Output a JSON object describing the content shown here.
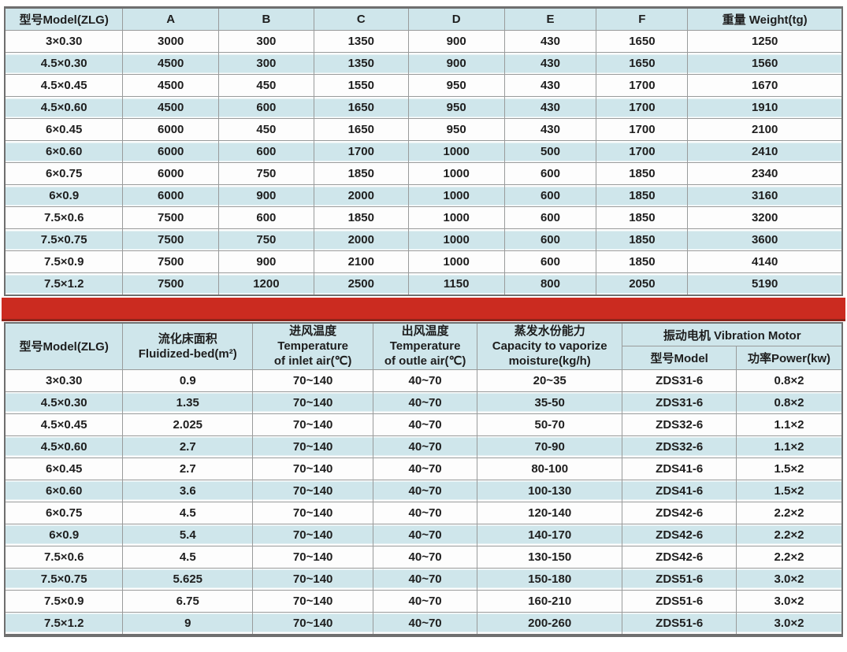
{
  "colors": {
    "row_alt_blue": "#cfe6eb",
    "divider_red": "#cb2b20",
    "border_gray": "#6f6f6f",
    "grid_gray": "#999b9b",
    "text": "#1e1e1e"
  },
  "table1": {
    "headers": [
      "型号Model(ZLG)",
      "A",
      "B",
      "C",
      "D",
      "E",
      "F",
      "重量 Weight(tg)"
    ],
    "rows": [
      [
        "3×0.30",
        "3000",
        "300",
        "1350",
        "900",
        "430",
        "1650",
        "1250"
      ],
      [
        "4.5×0.30",
        "4500",
        "300",
        "1350",
        "900",
        "430",
        "1650",
        "1560"
      ],
      [
        "4.5×0.45",
        "4500",
        "450",
        "1550",
        "950",
        "430",
        "1700",
        "1670"
      ],
      [
        "4.5×0.60",
        "4500",
        "600",
        "1650",
        "950",
        "430",
        "1700",
        "1910"
      ],
      [
        "6×0.45",
        "6000",
        "450",
        "1650",
        "950",
        "430",
        "1700",
        "2100"
      ],
      [
        "6×0.60",
        "6000",
        "600",
        "1700",
        "1000",
        "500",
        "1700",
        "2410"
      ],
      [
        "6×0.75",
        "6000",
        "750",
        "1850",
        "1000",
        "600",
        "1850",
        "2340"
      ],
      [
        "6×0.9",
        "6000",
        "900",
        "2000",
        "1000",
        "600",
        "1850",
        "3160"
      ],
      [
        "7.5×0.6",
        "7500",
        "600",
        "1850",
        "1000",
        "600",
        "1850",
        "3200"
      ],
      [
        "7.5×0.75",
        "7500",
        "750",
        "2000",
        "1000",
        "600",
        "1850",
        "3600"
      ],
      [
        "7.5×0.9",
        "7500",
        "900",
        "2100",
        "1000",
        "600",
        "1850",
        "4140"
      ],
      [
        "7.5×1.2",
        "7500",
        "1200",
        "2500",
        "1150",
        "800",
        "2050",
        "5190"
      ]
    ]
  },
  "table2": {
    "headers": {
      "model": "型号Model(ZLG)",
      "fluidized": "流化床面积\nFluidized-bed(m²)",
      "inlet": "进风温度\nTemperature\nof inlet air(℃)",
      "outlet": "出风温度\nTemperature\nof outle air(℃)",
      "capacity": "蒸发水份能力\nCapacity to vaporize\nmoisture(kg/h)",
      "motor_group": "振动电机 Vibration Motor",
      "motor_model": "型号Model",
      "motor_power": "功率Power(kw)"
    },
    "rows": [
      [
        "3×0.30",
        "0.9",
        "70~140",
        "40~70",
        "20~35",
        "ZDS31-6",
        "0.8×2"
      ],
      [
        "4.5×0.30",
        "1.35",
        "70~140",
        "40~70",
        "35-50",
        "ZDS31-6",
        "0.8×2"
      ],
      [
        "4.5×0.45",
        "2.025",
        "70~140",
        "40~70",
        "50-70",
        "ZDS32-6",
        "1.1×2"
      ],
      [
        "4.5×0.60",
        "2.7",
        "70~140",
        "40~70",
        "70-90",
        "ZDS32-6",
        "1.1×2"
      ],
      [
        "6×0.45",
        "2.7",
        "70~140",
        "40~70",
        "80-100",
        "ZDS41-6",
        "1.5×2"
      ],
      [
        "6×0.60",
        "3.6",
        "70~140",
        "40~70",
        "100-130",
        "ZDS41-6",
        "1.5×2"
      ],
      [
        "6×0.75",
        "4.5",
        "70~140",
        "40~70",
        "120-140",
        "ZDS42-6",
        "2.2×2"
      ],
      [
        "6×0.9",
        "5.4",
        "70~140",
        "40~70",
        "140-170",
        "ZDS42-6",
        "2.2×2"
      ],
      [
        "7.5×0.6",
        "4.5",
        "70~140",
        "40~70",
        "130-150",
        "ZDS42-6",
        "2.2×2"
      ],
      [
        "7.5×0.75",
        "5.625",
        "70~140",
        "40~70",
        "150-180",
        "ZDS51-6",
        "3.0×2"
      ],
      [
        "7.5×0.9",
        "6.75",
        "70~140",
        "40~70",
        "160-210",
        "ZDS51-6",
        "3.0×2"
      ],
      [
        "7.5×1.2",
        "9",
        "70~140",
        "40~70",
        "200-260",
        "ZDS51-6",
        "3.0×2"
      ]
    ]
  }
}
